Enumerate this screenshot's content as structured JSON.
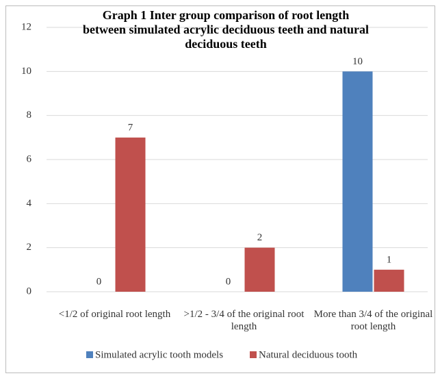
{
  "chart_data": {
    "type": "bar",
    "title": "Graph  1 Inter group comparison of root length between simulated acrylic deciduous teeth and natural deciduous teeth",
    "categories": [
      "<1/2 of original root length",
      ">1/2 - 3/4 of the original root length",
      "More than 3/4 of the original root length"
    ],
    "series": [
      {
        "name": "Simulated acrylic tooth models",
        "color": "#4f81bd",
        "values": [
          0,
          0,
          10
        ]
      },
      {
        "name": "Natural deciduous tooth",
        "color": "#c0504d",
        "values": [
          7,
          2,
          1
        ]
      }
    ],
    "ylim": [
      0,
      12
    ],
    "yticks": [
      0,
      2,
      4,
      6,
      8,
      10,
      12
    ],
    "grid": true,
    "legend": "bottom"
  }
}
